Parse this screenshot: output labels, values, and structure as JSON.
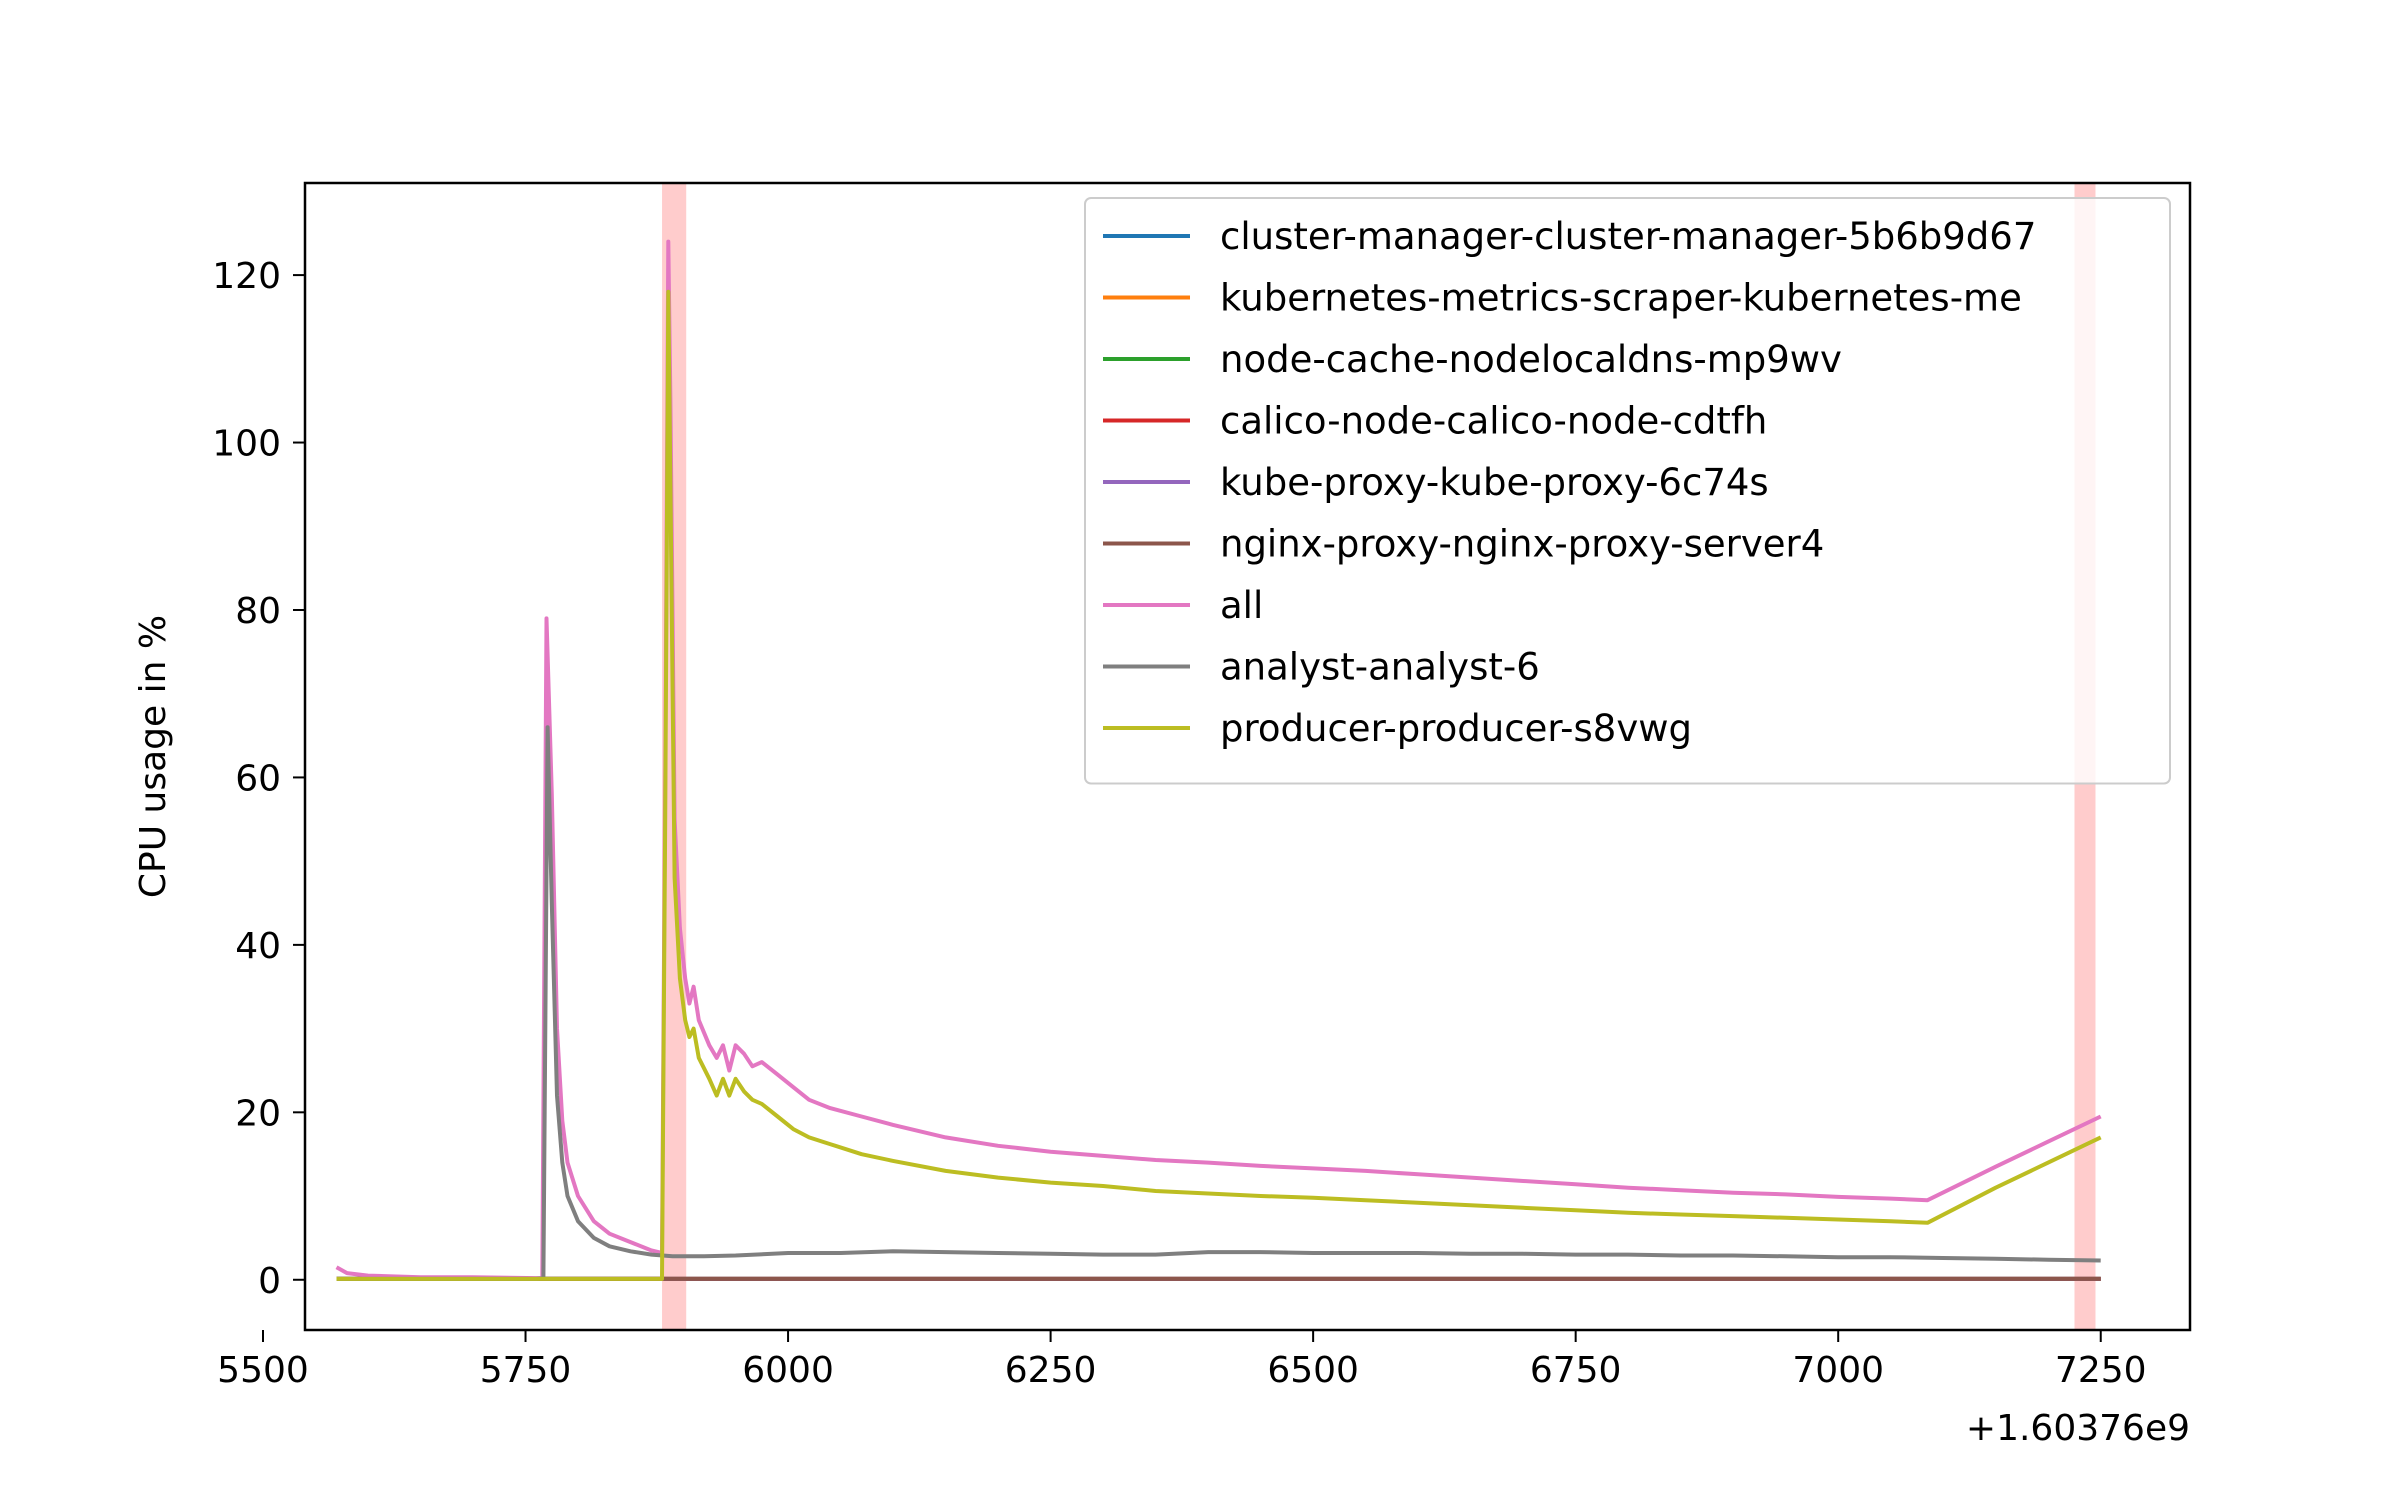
{
  "chart_data": {
    "type": "line",
    "ylabel": "CPU usage in %",
    "xlabel": "",
    "x_offset_text": "+1.60376e9",
    "xlim": [
      5540,
      7335
    ],
    "ylim": [
      -6,
      131
    ],
    "xticks": [
      5500,
      5750,
      6000,
      6250,
      6500,
      6750,
      7000,
      7250
    ],
    "yticks": [
      0,
      20,
      40,
      60,
      80,
      100,
      120
    ],
    "grid": false,
    "legend_position": "top-right",
    "highlight_spans": [
      {
        "x0": 5880,
        "x1": 5903,
        "color": "#ffcccc"
      },
      {
        "x0": 7225,
        "x1": 7245,
        "color": "#ffcccc"
      }
    ],
    "series": [
      {
        "name": "cluster-manager-cluster-manager-5b6b9d67",
        "color": "#1f77b4",
        "x": [
          5570,
          7250
        ],
        "y": [
          0.1,
          0.1
        ]
      },
      {
        "name": "kubernetes-metrics-scraper-kubernetes-me",
        "color": "#ff7f0e",
        "x": [
          5570,
          7250
        ],
        "y": [
          0.1,
          0.1
        ]
      },
      {
        "name": "node-cache-nodelocaldns-mp9wv",
        "color": "#2ca02c",
        "x": [
          5570,
          7250
        ],
        "y": [
          0.1,
          0.1
        ]
      },
      {
        "name": "calico-node-calico-node-cdtfh",
        "color": "#d62728",
        "x": [
          5570,
          7250
        ],
        "y": [
          0.1,
          0.1
        ]
      },
      {
        "name": "kube-proxy-kube-proxy-6c74s",
        "color": "#9467bd",
        "x": [
          5570,
          7250
        ],
        "y": [
          0.1,
          0.1
        ]
      },
      {
        "name": "nginx-proxy-nginx-proxy-server4",
        "color": "#8c564b",
        "x": [
          5570,
          7250
        ],
        "y": [
          0.1,
          0.1
        ]
      },
      {
        "name": "all",
        "color": "#e377c2",
        "x": [
          5570,
          5580,
          5600,
          5650,
          5700,
          5760,
          5766,
          5770,
          5775,
          5780,
          5785,
          5790,
          5800,
          5815,
          5830,
          5850,
          5870,
          5880,
          5883,
          5886,
          5888,
          5892,
          5897,
          5902,
          5906,
          5910,
          5915,
          5925,
          5932,
          5938,
          5944,
          5950,
          5958,
          5966,
          5975,
          5990,
          6005,
          6020,
          6040,
          6070,
          6100,
          6150,
          6200,
          6250,
          6300,
          6350,
          6400,
          6450,
          6500,
          6550,
          6600,
          6650,
          6700,
          6750,
          6800,
          6850,
          6900,
          6950,
          7000,
          7050,
          7085,
          7150,
          7200,
          7250
        ],
        "y": [
          1.5,
          0.8,
          0.5,
          0.3,
          0.3,
          0.2,
          0.2,
          79,
          58,
          30,
          19,
          14,
          10,
          7,
          5.5,
          4.5,
          3.5,
          3.2,
          60,
          124,
          105,
          55,
          42,
          36,
          33,
          35,
          31,
          28,
          26.5,
          28,
          25,
          28,
          27,
          25.5,
          26,
          24.5,
          23,
          21.5,
          20.5,
          19.5,
          18.5,
          17,
          16,
          15.3,
          14.8,
          14.3,
          14,
          13.6,
          13.3,
          13,
          12.6,
          12.2,
          11.8,
          11.4,
          11,
          10.7,
          10.4,
          10.2,
          9.9,
          9.7,
          9.5,
          13.5,
          16.5,
          19.5
        ]
      },
      {
        "name": "analyst-analyst-6",
        "color": "#7f7f7f",
        "x": [
          5570,
          5760,
          5767,
          5771,
          5775,
          5780,
          5785,
          5790,
          5800,
          5815,
          5830,
          5850,
          5870,
          5890,
          5920,
          5950,
          6000,
          6050,
          6100,
          6150,
          6200,
          6250,
          6300,
          6350,
          6400,
          6450,
          6500,
          6550,
          6600,
          6650,
          6700,
          6750,
          6800,
          6850,
          6900,
          6950,
          7000,
          7050,
          7100,
          7150,
          7200,
          7250
        ],
        "y": [
          0.1,
          0.1,
          0.2,
          66,
          45,
          22,
          14,
          10,
          7,
          5,
          4,
          3.4,
          3,
          2.8,
          2.8,
          2.9,
          3.2,
          3.2,
          3.4,
          3.3,
          3.2,
          3.1,
          3.0,
          3.0,
          3.3,
          3.3,
          3.2,
          3.2,
          3.2,
          3.1,
          3.1,
          3.0,
          3.0,
          2.9,
          2.9,
          2.8,
          2.7,
          2.7,
          2.6,
          2.5,
          2.4,
          2.3
        ]
      },
      {
        "name": "producer-producer-s8vwg",
        "color": "#bcbd22",
        "x": [
          5570,
          5880,
          5883,
          5886,
          5888,
          5892,
          5897,
          5902,
          5906,
          5910,
          5915,
          5925,
          5932,
          5938,
          5944,
          5950,
          5958,
          5966,
          5975,
          5990,
          6005,
          6020,
          6040,
          6070,
          6100,
          6150,
          6200,
          6250,
          6300,
          6350,
          6400,
          6450,
          6500,
          6550,
          6600,
          6650,
          6700,
          6750,
          6800,
          6850,
          6900,
          6950,
          7000,
          7050,
          7085,
          7150,
          7200,
          7250
        ],
        "y": [
          0.1,
          0.1,
          55,
          118,
          95,
          48,
          36,
          31,
          29,
          30,
          26.5,
          24,
          22,
          24,
          22,
          24,
          22.5,
          21.5,
          21,
          19.5,
          18,
          17,
          16.2,
          15,
          14.2,
          13,
          12.2,
          11.6,
          11.2,
          10.6,
          10.3,
          10,
          9.8,
          9.5,
          9.2,
          8.9,
          8.6,
          8.3,
          8,
          7.8,
          7.6,
          7.4,
          7.2,
          7.0,
          6.8,
          11,
          14,
          17
        ]
      }
    ]
  }
}
